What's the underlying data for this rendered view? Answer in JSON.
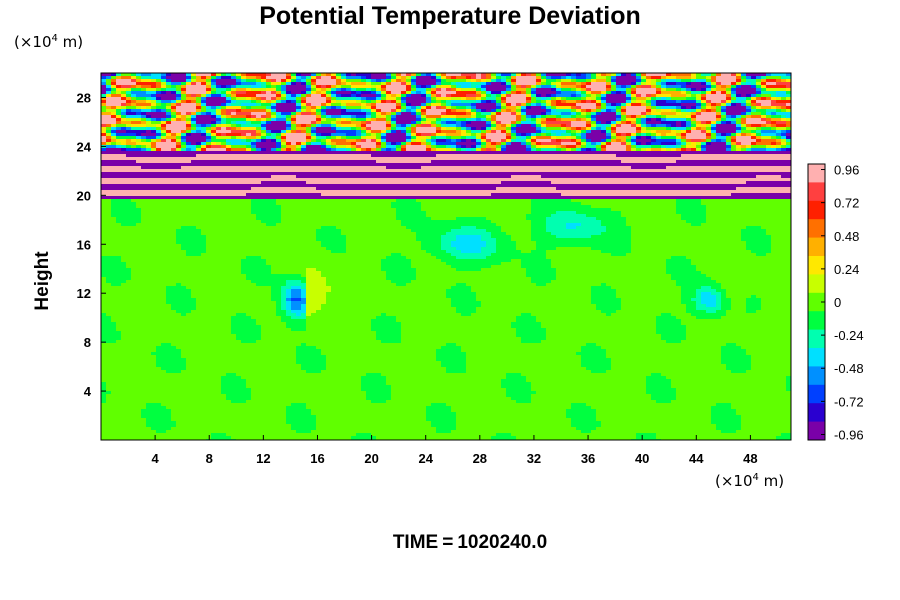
{
  "chart_data": {
    "type": "heatmap",
    "title": "Potential Temperature Deviation",
    "ylabel": "Height",
    "xlabel": "",
    "x_unit": {
      "prefix": "(×10",
      "exp": "4",
      "suffix": " m)"
    },
    "y_unit": {
      "prefix": "(×10",
      "exp": "4",
      "suffix": " m)"
    },
    "xlim": [
      0,
      51
    ],
    "ylim": [
      0,
      30
    ],
    "x_ticks": [
      4,
      8,
      12,
      16,
      20,
      24,
      28,
      32,
      36,
      40,
      44,
      48
    ],
    "x_tick_labels": [
      "4",
      "8",
      "12",
      "16",
      "20",
      "24",
      "28",
      "32",
      "36",
      "40",
      "44",
      "48"
    ],
    "y_ticks": [
      4,
      8,
      12,
      16,
      20,
      24,
      28
    ],
    "y_tick_labels": [
      "4",
      "8",
      "12",
      "16",
      "20",
      "24",
      "28"
    ],
    "colorbar": {
      "vmin": -1.0,
      "vmax": 1.0,
      "ticks": [
        0.96,
        0.72,
        0.48,
        0.24,
        0,
        -0.24,
        -0.48,
        -0.72,
        -0.96
      ],
      "tick_labels": [
        "0.96",
        "0.72",
        "0.48",
        "0.24",
        "0",
        "-0.24",
        "-0.48",
        "-0.72",
        "-0.96"
      ],
      "colors_low_to_high": [
        "#7a00a8",
        "#2a00d0",
        "#0040ff",
        "#0090ff",
        "#00e0ff",
        "#00ffb0",
        "#00ff40",
        "#60ff00",
        "#c8ff00",
        "#ffe800",
        "#ffb000",
        "#ff7000",
        "#ff2000",
        "#ff4040",
        "#ffb0b0"
      ]
    },
    "field_description_regions": [
      {
        "y_range": [
          0,
          20
        ],
        "dominant_value": -0.05
      },
      {
        "y_range": [
          20,
          23.5
        ],
        "dominant_value": "alternating bands -0.96 / 0.96"
      },
      {
        "y_range": [
          23.5,
          30
        ],
        "dominant_value": "mixed -0.96 to 0.96"
      }
    ]
  },
  "footer": {
    "time_label": "TIME",
    "equals": "=",
    "time_value": "1020240.0"
  },
  "colors": {
    "background": "#ffffff",
    "axis": "#000000"
  }
}
